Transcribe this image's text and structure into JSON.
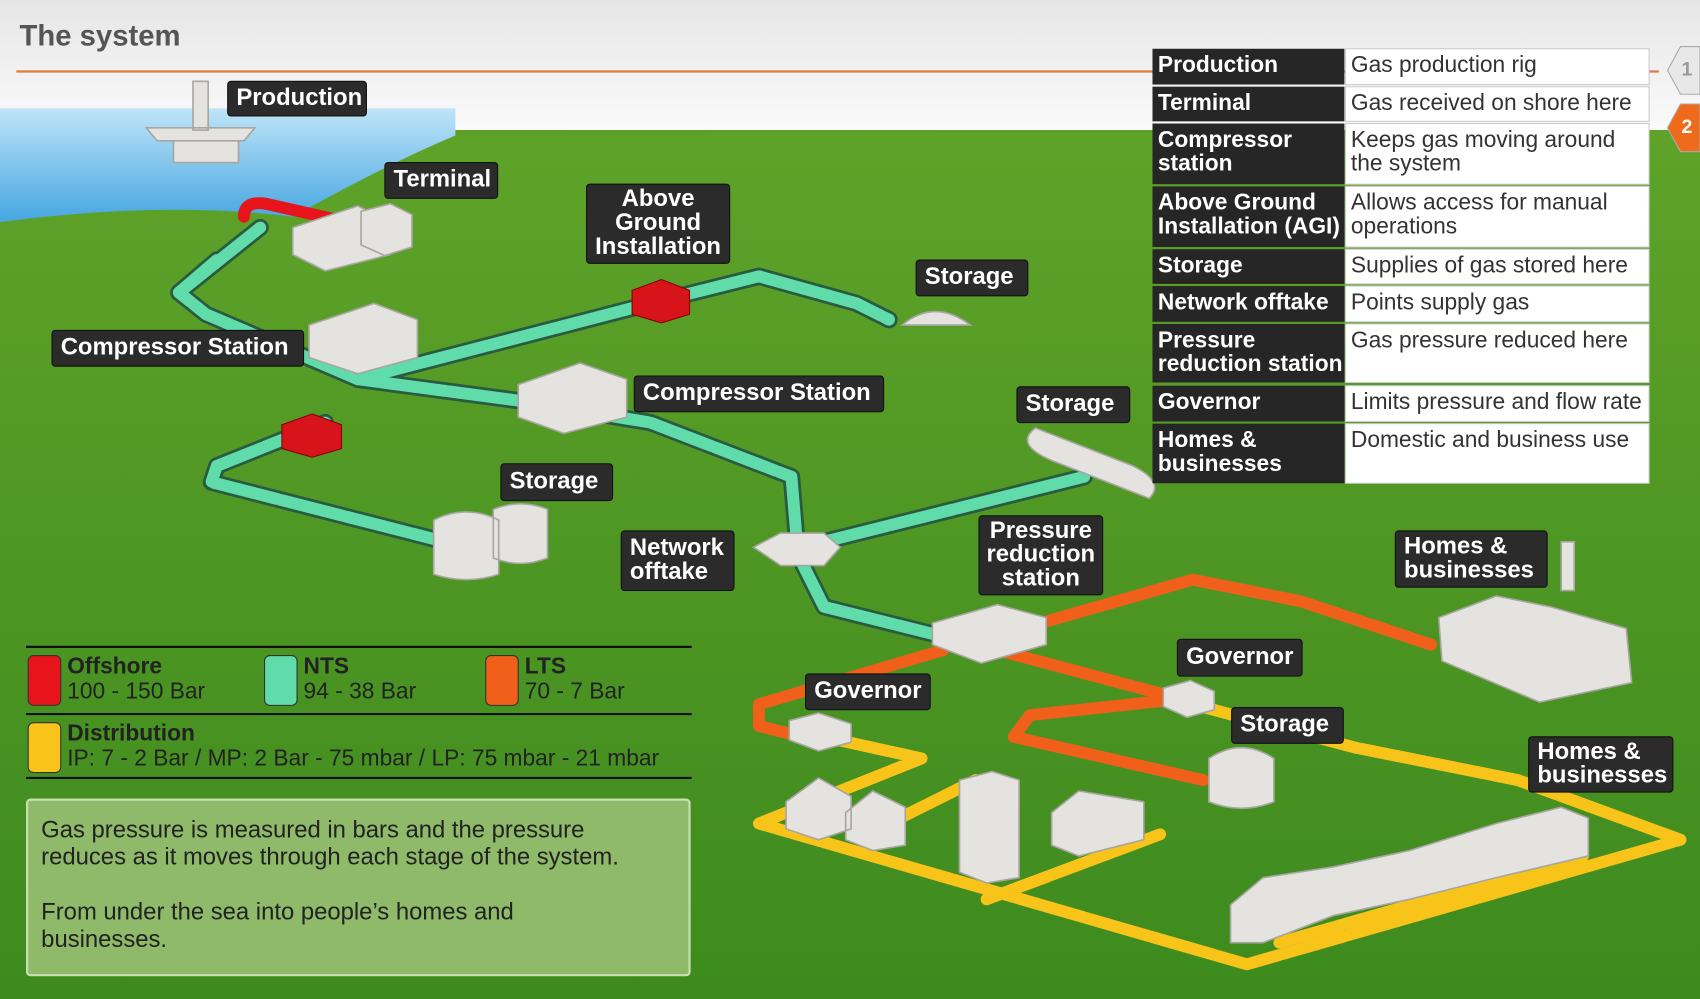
{
  "header": {
    "title": "The system"
  },
  "steps": [
    "1",
    "2"
  ],
  "map_labels": [
    {
      "lines": [
        "Production"
      ]
    },
    {
      "lines": [
        "Terminal"
      ]
    },
    {
      "lines": [
        "Above",
        "Ground",
        "Installation"
      ]
    },
    {
      "lines": [
        "Storage"
      ]
    },
    {
      "lines": [
        "Compressor Station"
      ]
    },
    {
      "lines": [
        "Compressor Station"
      ]
    },
    {
      "lines": [
        "Storage"
      ]
    },
    {
      "lines": [
        "Storage"
      ]
    },
    {
      "lines": [
        "Network",
        "offtake"
      ]
    },
    {
      "lines": [
        "Pressure",
        "reduction",
        "station"
      ]
    },
    {
      "lines": [
        "Homes &",
        "businesses"
      ]
    },
    {
      "lines": [
        "Governor"
      ]
    },
    {
      "lines": [
        "Governor"
      ]
    },
    {
      "lines": [
        "Storage"
      ]
    },
    {
      "lines": [
        "Homes &",
        "businesses"
      ]
    }
  ],
  "key_table": {
    "rows": [
      [
        [
          "Production"
        ],
        [
          "Gas production rig"
        ]
      ],
      [
        [
          "Terminal"
        ],
        [
          "Gas received on shore here"
        ]
      ],
      [
        [
          "Compressor",
          "station"
        ],
        [
          "Keeps gas moving around",
          "the system"
        ]
      ],
      [
        [
          "Above Ground",
          "Installation (AGI)"
        ],
        [
          "Allows access for manual",
          "operations"
        ]
      ],
      [
        [
          "Storage"
        ],
        [
          "Supplies of gas stored here"
        ]
      ],
      [
        [
          "Network offtake"
        ],
        [
          "Points supply gas"
        ]
      ],
      [
        [
          "Pressure",
          "reduction station"
        ],
        [
          "Gas pressure reduced here"
        ]
      ],
      [
        [
          "Governor"
        ],
        [
          "Limits pressure and flow rate"
        ]
      ],
      [
        [
          "Homes &",
          "businesses"
        ],
        [
          "Domestic and business use"
        ]
      ]
    ]
  },
  "legend": {
    "items": [
      {
        "name": "Offshore",
        "range": "100 - 150 Bar",
        "color": "#e8141c"
      },
      {
        "name": "NTS",
        "range": "94 - 38 Bar",
        "color": "#5fdcaa"
      },
      {
        "name": "LTS",
        "range": "70 - 7 Bar",
        "color": "#f0601a"
      },
      {
        "name": "Distribution",
        "range": "IP: 7 - 2 Bar / MP: 2 Bar - 75 mbar / LP: 75 mbar - 21 mbar",
        "color": "#f9c419"
      }
    ]
  },
  "info": {
    "paragraphs": [
      [
        "Gas pressure is measured in bars and the pressure",
        "reduces as it moves through each stage of the system."
      ],
      [
        "From under the sea into people’s homes and",
        "businesses."
      ]
    ]
  }
}
